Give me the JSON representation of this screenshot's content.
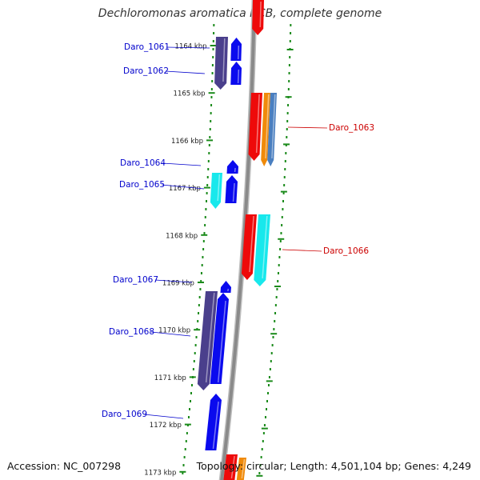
{
  "title": "Dechloromonas aromatica RCB, complete genome",
  "footer": {
    "accession": "Accession: NC_007298",
    "topology": "Topology: circular; Length: 4,501,104 bp; Genes: 4,249"
  },
  "colors": {
    "backbone": "#8a8a8a",
    "tick": "#1a8a1a",
    "forward_label": "#0000cc",
    "reverse_label": "#cc0000",
    "dark_gene": "#4a3f8c",
    "blue_gene": "#0a0aee",
    "cyan_gene": "#18e8ec",
    "red_gene": "#ee0a0a",
    "orange_gene": "#f08a0a",
    "steel_gene": "#4a7fc0"
  },
  "scale": {
    "unit": "kbp",
    "labels": [
      "1164 kbp",
      "1165 kbp",
      "1166 kbp",
      "1167 kbp",
      "1168 kbp",
      "1169 kbp",
      "1170 kbp",
      "1171 kbp",
      "1172 kbp",
      "1173 kbp"
    ]
  },
  "gene_labels": [
    {
      "text": "Daro_1061",
      "strand": "forward"
    },
    {
      "text": "Daro_1062",
      "strand": "forward"
    },
    {
      "text": "Daro_1063",
      "strand": "reverse"
    },
    {
      "text": "Daro_1064",
      "strand": "forward"
    },
    {
      "text": "Daro_1065",
      "strand": "forward"
    },
    {
      "text": "Daro_1066",
      "strand": "reverse"
    },
    {
      "text": "Daro_1067",
      "strand": "forward"
    },
    {
      "text": "Daro_1068",
      "strand": "forward"
    },
    {
      "text": "Daro_1069",
      "strand": "forward"
    }
  ]
}
